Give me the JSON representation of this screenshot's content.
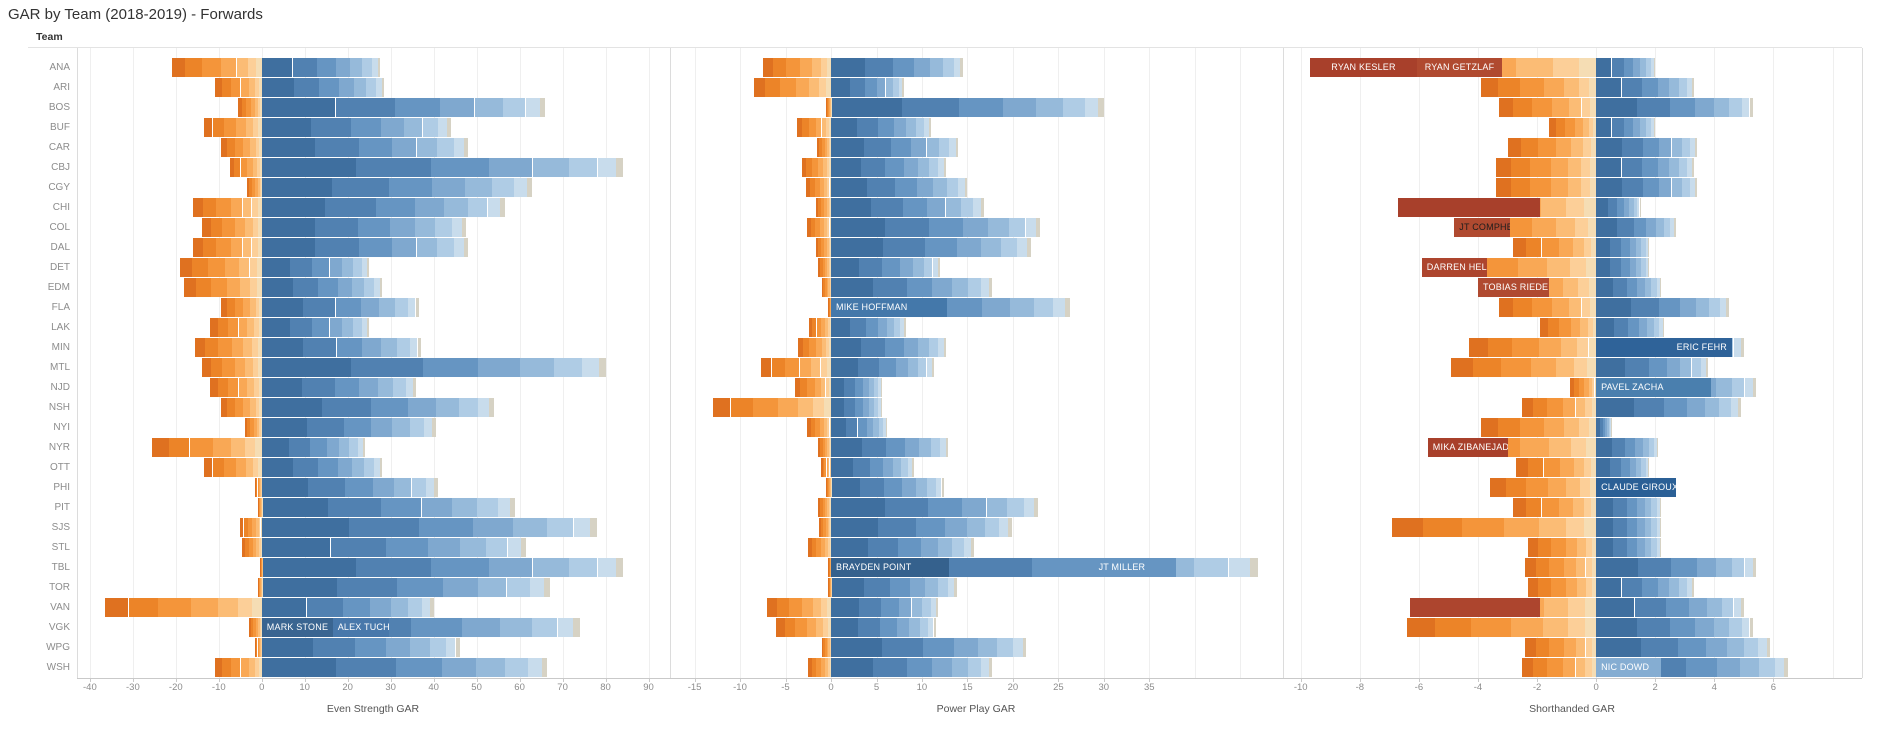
{
  "title": "GAR by Team (2018-2019) - Forwards",
  "row_header": "Team",
  "colors": {
    "positive_ramp": [
      "#3f6f9f",
      "#5181b1",
      "#6695c2",
      "#7fa8cf",
      "#96bada",
      "#afcce5",
      "#c8dcec",
      "#d6d2c4"
    ],
    "negative_ramp": [
      "#f5ddb4",
      "#fccf98",
      "#fbbc75",
      "#f9a855",
      "#f4953a",
      "#ec8428",
      "#df7120"
    ],
    "highlight_negative": "#a8402b",
    "highlight_positive": "#2f6399",
    "gridline": "#efefef",
    "axis_text": "#8c8c8c"
  },
  "chart_data": {
    "type": "bar",
    "orientation": "horizontal-diverging-stacked",
    "teams": [
      "ANA",
      "ARI",
      "BOS",
      "BUF",
      "CAR",
      "CBJ",
      "CGY",
      "CHI",
      "COL",
      "DAL",
      "DET",
      "EDM",
      "FLA",
      "LAK",
      "MIN",
      "MTL",
      "NJD",
      "NSH",
      "NYI",
      "NYR",
      "OTT",
      "PHI",
      "PIT",
      "SJS",
      "STL",
      "TBL",
      "TOR",
      "VAN",
      "VGK",
      "WPG",
      "WSH"
    ],
    "series": [
      {
        "name": "Even Strength GAR",
        "axis": {
          "min": -43,
          "max": 95,
          "ticks": [
            -40,
            -30,
            -20,
            -10,
            0,
            10,
            20,
            30,
            40,
            50,
            60,
            70,
            80,
            90
          ],
          "grid_extra": []
        },
        "neg": [
          -21,
          -11,
          -5.5,
          -13.5,
          -9.5,
          -7.5,
          -3.5,
          -16,
          -14,
          -16,
          -19,
          -18,
          -9.5,
          -12,
          -15.5,
          -14,
          -12,
          -9.5,
          -4,
          -25.5,
          -13.5,
          -1.5,
          -1,
          -5,
          -4.5,
          -0.5,
          -1,
          -36.5,
          -3,
          -1.5,
          -11
        ],
        "pos": [
          27.5,
          28.5,
          66,
          44,
          48,
          84,
          63,
          56.5,
          47.5,
          48,
          25,
          28,
          36.5,
          25,
          37,
          80,
          36,
          54,
          40.5,
          24,
          28,
          41,
          59,
          78,
          61.5,
          84,
          67,
          40,
          74,
          46,
          66.5
        ]
      },
      {
        "name": "Power Play GAR",
        "axis": {
          "min": -17.7,
          "max": 49.7,
          "ticks": [
            -15,
            -10,
            -5,
            0,
            5,
            10,
            15,
            20,
            25,
            30,
            35
          ],
          "grid_extra": [
            40,
            45
          ]
        },
        "neg": [
          -7.5,
          -8.5,
          -0.5,
          -3.7,
          -1.5,
          -3.2,
          -2.7,
          -1.7,
          -2.6,
          -1.7,
          -1.4,
          -1,
          -0.3,
          -2.4,
          -3.6,
          -7.7,
          -4,
          -13,
          -2.6,
          -1.4,
          -1.1,
          -0.5,
          -1.4,
          -1.3,
          -2.5,
          -0.3,
          -0.3,
          -7,
          -6,
          -1,
          -2.5
        ],
        "pos": [
          14.5,
          8,
          30,
          11,
          14,
          12.7,
          15,
          16.8,
          23,
          22,
          12,
          17.7,
          26.3,
          8.2,
          12.7,
          11.3,
          5.6,
          5.6,
          6.2,
          12.9,
          9.1,
          12.4,
          22.8,
          19.9,
          15.7,
          47,
          13.8,
          11.8,
          11.5,
          21.5,
          17.7
        ]
      },
      {
        "name": "Shorthanded GAR",
        "axis": {
          "min": -10.6,
          "max": 9.0,
          "ticks": [
            -10,
            -8,
            -6,
            -4,
            -2,
            0,
            2,
            4,
            6
          ],
          "grid_extra": [
            8
          ]
        },
        "neg": [
          -9.7,
          -3.9,
          -3.3,
          -1.6,
          -3.0,
          -3.4,
          -3.4,
          -6.7,
          -4.8,
          -2.8,
          -5.9,
          -4.0,
          -3.3,
          -1.9,
          -4.3,
          -4.9,
          -0.9,
          -2.5,
          -3.9,
          -5.7,
          -2.7,
          -3.6,
          -2.8,
          -6.9,
          -2.3,
          -2.4,
          -2.3,
          -6.3,
          -6.4,
          -2.4,
          -2.5
        ],
        "pos": [
          2.0,
          3.3,
          5.3,
          2.0,
          3.4,
          3.3,
          3.4,
          1.5,
          2.7,
          1.8,
          1.8,
          2.2,
          4.5,
          2.3,
          5.0,
          3.8,
          5.4,
          4.9,
          0.5,
          2.1,
          1.8,
          2.7,
          2.2,
          2.2,
          2.2,
          5.4,
          3.3,
          5.0,
          5.3,
          5.9,
          6.5
        ]
      }
    ],
    "labeled_players": [
      {
        "panel": 0,
        "team": "VGK",
        "text": "MARK STONE",
        "from": 0,
        "to": 16.5,
        "bg": "#3a6591",
        "fg": "#ffffff",
        "align": "left"
      },
      {
        "panel": 0,
        "team": "VGK",
        "text": "ALEX TUCH",
        "from": 16.5,
        "to": 29.5,
        "bg": "#4878ab",
        "fg": "#ffffff",
        "align": "left"
      },
      {
        "panel": 1,
        "team": "FLA",
        "text": "MIKE HOFFMAN",
        "from": 0,
        "to": 12.8,
        "bg": "#4478aa",
        "fg": "#ffffff",
        "align": "left"
      },
      {
        "panel": 1,
        "team": "TBL",
        "text": "BRAYDEN POINT",
        "from": 0,
        "to": 13,
        "bg": "#35618d",
        "fg": "#ffffff",
        "align": "left"
      },
      {
        "panel": 1,
        "team": "TBL",
        "text": "JT MILLER",
        "from": 26,
        "to": 38,
        "bg": "#6695c2",
        "fg": "#ffffff",
        "align": "center"
      },
      {
        "panel": 2,
        "team": "ANA",
        "text": "RYAN KESLER",
        "from": -9.7,
        "to": -6.05,
        "bg": "#a8402b",
        "fg": "#ffffff",
        "align": "center"
      },
      {
        "panel": 2,
        "team": "ANA",
        "text": "RYAN GETZLAF",
        "from": -6.05,
        "to": -3.2,
        "bg": "#b04a30",
        "fg": "#ffffff",
        "align": "center"
      },
      {
        "panel": 2,
        "team": "CHI",
        "text": "",
        "from": -6.7,
        "to": -1.9,
        "bg": "#a8402b",
        "fg": "#ffffff",
        "align": "center"
      },
      {
        "panel": 2,
        "team": "COL",
        "text": "JT COMPHER",
        "from": -4.8,
        "to": -2.9,
        "bg": "#b04a30",
        "fg": "#1d1d1d",
        "align": "center"
      },
      {
        "panel": 2,
        "team": "DET",
        "text": "DARREN HELM",
        "from": -5.9,
        "to": -3.7,
        "bg": "#ad452e",
        "fg": "#ffffff",
        "align": "center"
      },
      {
        "panel": 2,
        "team": "EDM",
        "text": "TOBIAS RIEDER",
        "from": -4.0,
        "to": -1.6,
        "bg": "#b04a30",
        "fg": "#ffffff",
        "align": "center"
      },
      {
        "panel": 2,
        "team": "NYR",
        "text": "MIKA ZIBANEJAD",
        "from": -5.7,
        "to": -3.0,
        "bg": "#a8402b",
        "fg": "#ffffff",
        "align": "center"
      },
      {
        "panel": 2,
        "team": "VAN",
        "text": "",
        "from": -6.3,
        "to": -1.9,
        "bg": "#ad452e",
        "fg": "#ffffff",
        "align": "center"
      },
      {
        "panel": 2,
        "team": "MIN",
        "text": "ERIC FEHR",
        "from": 0,
        "to": 4.6,
        "bg": "#2f6399",
        "fg": "#ffffff",
        "align": "right"
      },
      {
        "panel": 2,
        "team": "NJD",
        "text": "PAVEL ZACHA",
        "from": 0,
        "to": 3.9,
        "bg": "#4a7fae",
        "fg": "#ffffff",
        "align": "left"
      },
      {
        "panel": 2,
        "team": "PHI",
        "text": "CLAUDE GIROUX",
        "from": 0,
        "to": 2.7,
        "bg": "#2b6096",
        "fg": "#ffffff",
        "align": "center"
      },
      {
        "panel": 2,
        "team": "WSH",
        "text": "NIC DOWD",
        "from": 0,
        "to": 2.2,
        "bg": "#85add2",
        "fg": "#ffffff",
        "align": "left"
      }
    ]
  }
}
